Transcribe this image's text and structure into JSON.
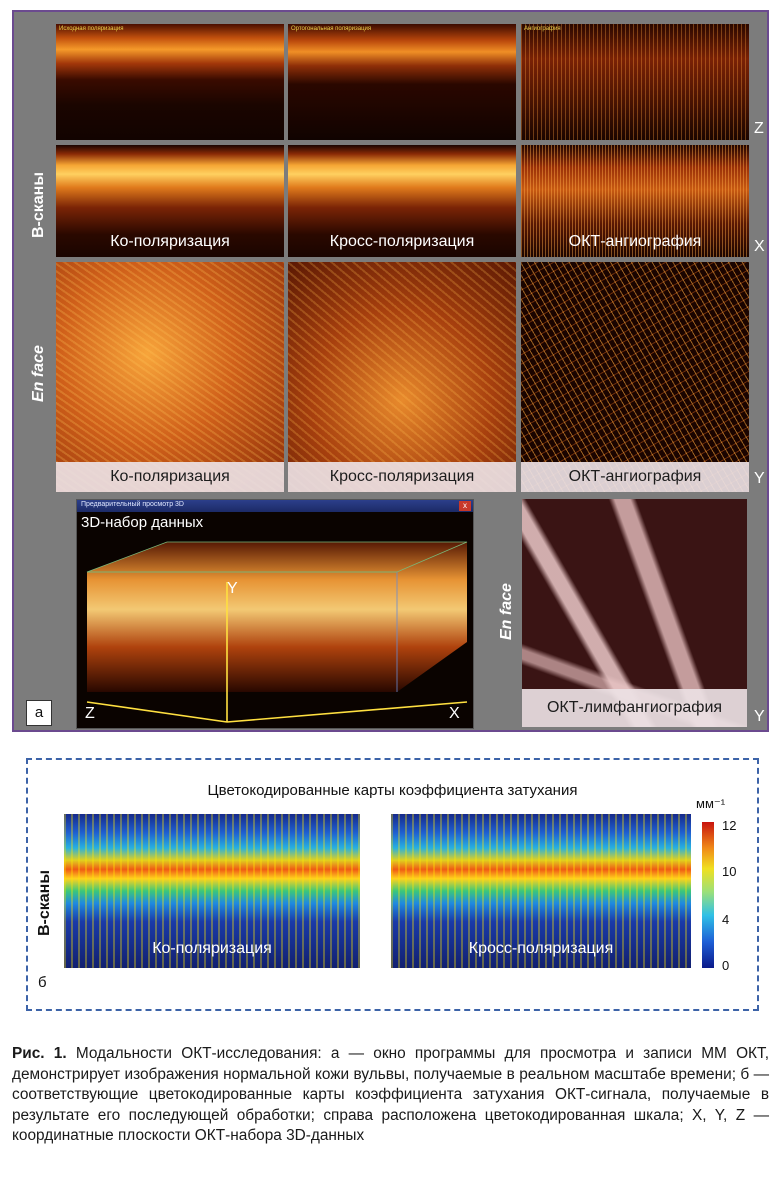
{
  "panel_a": {
    "top_row_captions": [
      "Исходная поляризация",
      "Ортогональная поляризация",
      "Ангиография"
    ],
    "row_labels": {
      "bscans": "В-сканы",
      "enface": "En face",
      "enface_lymph": "En face"
    },
    "bscan_captions": [
      "Ко-поляризация",
      "Кросс-поляризация",
      "ОКТ-ангиография"
    ],
    "enface_captions": [
      "Ко-поляризация",
      "Кросс-поляризация",
      "ОКТ-ангиография"
    ],
    "axes": {
      "z_top": "Z",
      "x_mid": "X",
      "y_enface": "Y",
      "y_3d": "Y",
      "z_3d": "Z",
      "x_3d": "X",
      "y_lymph": "Y"
    },
    "window_title": "Предварительный просмотр 3D",
    "window_close": "x",
    "dataset_label": "3D-набор данных",
    "lymph_caption": "ОКТ-лимфангиография",
    "panel_letter": "а"
  },
  "panel_b": {
    "title": "Цветокодированные карты коэффициента затухания",
    "row_label": "В-сканы",
    "captions": [
      "Ко-поляризация",
      "Кросс-поляризация"
    ],
    "colorbar_unit": "мм⁻¹",
    "colorbar_ticks": [
      "12",
      "10",
      "4",
      "0"
    ],
    "panel_letter": "б"
  },
  "caption": {
    "lead": "Рис. 1.",
    "text": " Модальности ОКТ-исследования: а — окно программы для просмотра и записи ММ ОКТ, демонстрирует изображения нормальной кожи вульвы, получаемые в реальном масштабе времени; б — соответствующие цветокодированные карты коэффициента затухания ОКТ-сигнала, получаемые в результате его последующей обработки; справа расположена цветокодированная шкала; X, Y, Z — координатные плоскости ОКТ-набора 3D-данных"
  }
}
